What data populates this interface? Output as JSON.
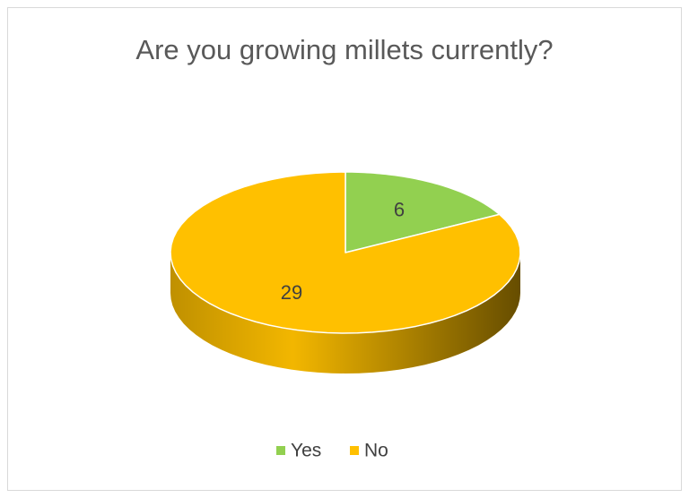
{
  "chart_data": {
    "type": "pie",
    "title": "Are you growing millets currently?",
    "categories": [
      "Yes",
      "No"
    ],
    "values": [
      6,
      29
    ],
    "colors": [
      "#92d050",
      "#ffc000"
    ],
    "legend": "bottom"
  }
}
